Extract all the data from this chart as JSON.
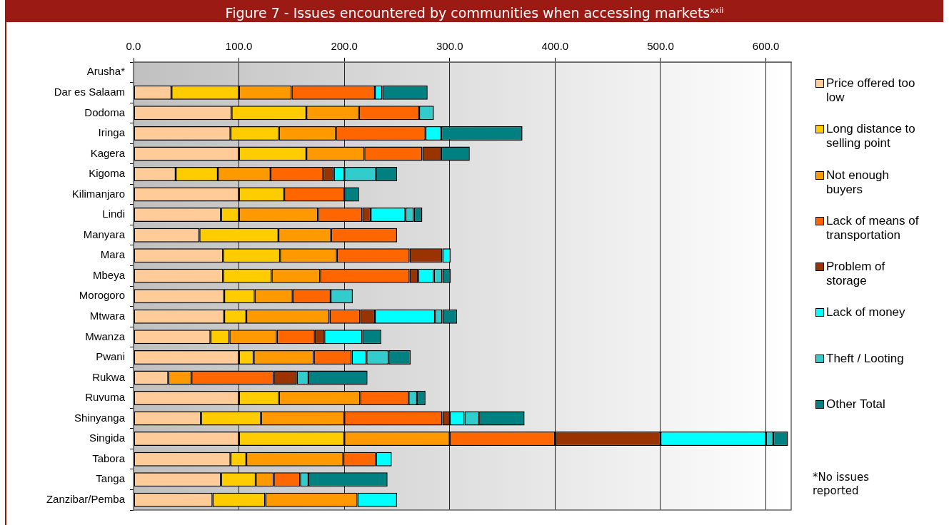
{
  "chart_data": {
    "type": "bar",
    "orientation": "horizontal",
    "stacked": true,
    "title": "Figure 7 - Issues encountered by communities when accessing markets$^{xxii}$",
    "categories": [
      "Arusha*",
      "Dar es Salaam",
      "Dodoma",
      "Iringa",
      "Kagera",
      "Kigoma",
      "Kilimanjaro",
      "Lindi",
      "Manyara",
      "Mara",
      "Mbeya",
      "Morogoro",
      "Mtwara",
      "Mwanza",
      "Pwani",
      "Rukwa",
      "Ruvuma",
      "Shinyanga",
      "Singida",
      "Tabora",
      "Tanga",
      "Zanzibar/Pemba"
    ],
    "series": [
      {
        "name": "Price offered too low",
        "color": "#ffcc99",
        "values": [
          null,
          36,
          93,
          92,
          100,
          40,
          100,
          83,
          62.5,
          85,
          85,
          86,
          86,
          73,
          100,
          33,
          100,
          64,
          100,
          92,
          83,
          75
        ]
      },
      {
        "name": "Long distance to selling point",
        "color": "#ffcc00",
        "values": [
          null,
          64,
          71,
          46,
          64,
          40,
          43,
          17,
          75,
          54,
          46,
          29,
          21,
          18,
          14,
          null,
          38,
          57,
          100,
          15,
          33,
          50
        ]
      },
      {
        "name": "Not enough buyers",
        "color": "#ff9900",
        "values": [
          null,
          50,
          50,
          54,
          55,
          50,
          null,
          75,
          50,
          54,
          46,
          36,
          79,
          45,
          57,
          22,
          77,
          79,
          100,
          92,
          17,
          87.5
        ]
      },
      {
        "name": "Lack of means of transportation",
        "color": "#ff6600",
        "values": [
          null,
          79,
          57,
          85,
          55,
          50,
          57,
          42,
          62.5,
          69,
          85,
          36,
          29,
          36,
          36,
          78,
          46,
          93,
          100,
          31,
          25,
          null
        ]
      },
      {
        "name": "Problem of storage",
        "color": "#993300",
        "values": [
          null,
          null,
          null,
          null,
          18,
          10,
          null,
          8,
          null,
          31,
          8,
          null,
          14,
          9,
          null,
          22,
          null,
          7,
          100,
          null,
          null,
          null
        ]
      },
      {
        "name": "Lack of money",
        "color": "#00ffff",
        "values": [
          null,
          7,
          null,
          15,
          null,
          10,
          null,
          33,
          null,
          8,
          15,
          null,
          57,
          36,
          14,
          null,
          null,
          14,
          100,
          15,
          null,
          37.5
        ]
      },
      {
        "name": "Theft / Looting",
        "color": "#33cccc",
        "values": [
          null,
          null,
          14,
          null,
          null,
          30,
          null,
          8,
          null,
          null,
          8,
          21,
          7,
          null,
          21,
          11,
          8,
          14,
          7,
          null,
          8,
          null
        ]
      },
      {
        "name": "Other Total",
        "color": "#008080",
        "values": [
          null,
          43,
          null,
          77,
          27,
          20,
          14,
          8,
          null,
          null,
          8,
          null,
          14,
          18,
          21,
          56,
          8,
          43,
          14,
          null,
          75,
          null
        ]
      }
    ],
    "xlim": [
      0,
      624
    ],
    "xticks": [
      {
        "value": 0,
        "label": "0.0"
      },
      {
        "value": 100,
        "label": "100.0"
      },
      {
        "value": 200,
        "label": "200.0"
      },
      {
        "value": 300,
        "label": "300.0"
      },
      {
        "value": 400,
        "label": "400.0"
      },
      {
        "value": 500,
        "label": "500.0"
      },
      {
        "value": 600,
        "label": "600.0"
      }
    ],
    "grid": "x",
    "legend": "right",
    "annotations": [
      "*No issues reported"
    ]
  }
}
